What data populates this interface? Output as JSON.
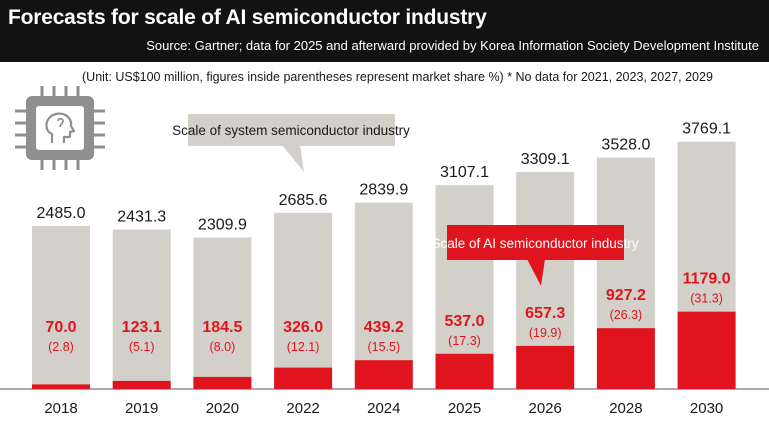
{
  "header": {
    "title": "Forecasts for scale of AI semiconductor industry",
    "source": "Source: Gartner; data for 2025 and afterward provided by Korea Information Society Development Institute"
  },
  "unit_note": "(Unit: US$100 million, figures inside parentheses represent market share %)  * No data for 2021, 2023, 2027, 2029",
  "icon": "ai-chip-icon",
  "colors": {
    "header_bg": "#121212",
    "system_bar": "#d3d0c9",
    "ai_bar": "#e0141e",
    "ai_text": "#e0141e",
    "system_callout_bg": "#d3d0c9",
    "ai_callout_bg": "#e0141e"
  },
  "chart_data": {
    "type": "bar",
    "categories": [
      "2018",
      "2019",
      "2020",
      "2022",
      "2024",
      "2025",
      "2026",
      "2028",
      "2030"
    ],
    "series": [
      {
        "name": "Scale of system semiconductor industry",
        "values": [
          2485.0,
          2431.3,
          2309.9,
          2685.6,
          2839.9,
          3107.1,
          3309.1,
          3528.0,
          3769.1
        ],
        "labels": [
          "2485.0",
          "2431.3",
          "2309.9",
          "2685.6",
          "2839.9",
          "3107.1",
          "3309.1",
          "3528.0",
          "3769.1"
        ]
      },
      {
        "name": "Scale of AI semiconductor industry",
        "values": [
          70.0,
          123.1,
          184.5,
          326.0,
          439.2,
          537.0,
          657.3,
          927.2,
          1179.0
        ],
        "labels": [
          "70.0",
          "123.1",
          "184.5",
          "326.0",
          "439.2",
          "537.0",
          "657.3",
          "927.2",
          "1179.0"
        ],
        "share_labels": [
          "(2.8)",
          "(5.1)",
          "(8.0)",
          "(12.1)",
          "(15.5)",
          "(17.3)",
          "(19.9)",
          "(26.3)",
          "(31.3)"
        ]
      }
    ],
    "grid": false,
    "legend": "callouts"
  }
}
